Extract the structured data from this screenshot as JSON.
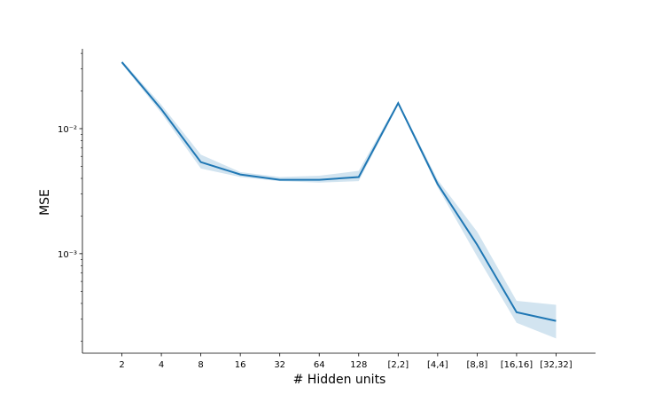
{
  "chart_data": {
    "type": "line",
    "xlabel": "# Hidden units",
    "ylabel": "MSE",
    "categories": [
      "2",
      "4",
      "8",
      "16",
      "32",
      "64",
      "128",
      "[2,2]",
      "[4,4]",
      "[8,8]",
      "[16,16]",
      "[32,32]"
    ],
    "series": [
      {
        "color": "#1f77b4",
        "values": [
          0.034,
          0.0143,
          0.0054,
          0.0043,
          0.0039,
          0.0039,
          0.0041,
          0.016,
          0.0036,
          0.00118,
          0.00034,
          0.00029
        ],
        "lower": [
          0.033,
          0.0133,
          0.0048,
          0.0041,
          0.0038,
          0.0037,
          0.0038,
          0.0155,
          0.0034,
          0.00095,
          0.00028,
          0.00021
        ],
        "upper": [
          0.035,
          0.0155,
          0.0062,
          0.0045,
          0.0041,
          0.0042,
          0.0046,
          0.0165,
          0.0039,
          0.0015,
          0.00042,
          0.00039
        ]
      }
    ],
    "log_y": true,
    "ylim": [
      0.00016,
      0.0435
    ],
    "yticks": [
      {
        "value": 0.01,
        "label": "10⁻²"
      },
      {
        "value": 0.001,
        "label": "10⁻³"
      }
    ],
    "minor_yticks": [
      0.0002,
      0.0003,
      0.0004,
      0.0005,
      0.0006,
      0.0007,
      0.0008,
      0.0009,
      0.002,
      0.003,
      0.004,
      0.005,
      0.006,
      0.007,
      0.008,
      0.009,
      0.02,
      0.03,
      0.04
    ]
  }
}
